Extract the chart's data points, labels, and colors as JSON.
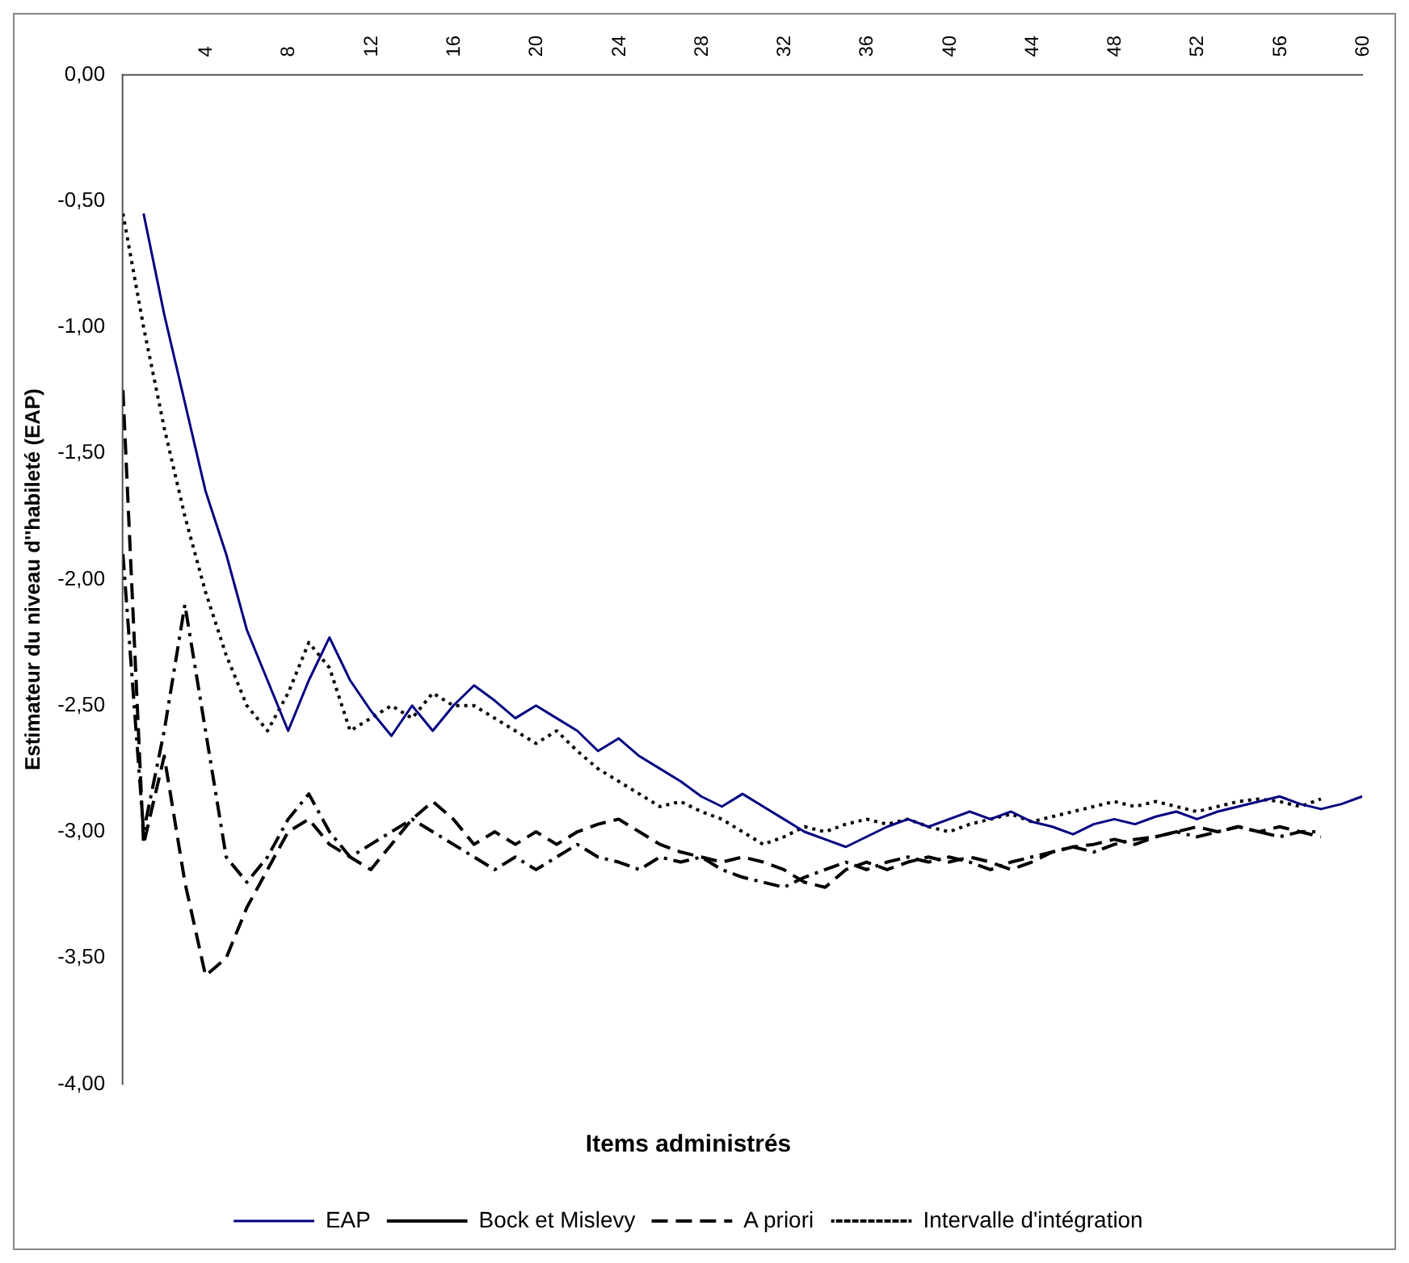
{
  "chart_data": {
    "type": "line",
    "xlabel": "Items administrés",
    "ylabel": "Estimateur du niveau d''habileté (EAP)",
    "xlim": [
      0,
      60
    ],
    "xticks": [
      4,
      8,
      12,
      16,
      20,
      24,
      28,
      32,
      36,
      40,
      44,
      48,
      52,
      56,
      60
    ],
    "ylim": [
      -4,
      0
    ],
    "yticks": [
      {
        "value": 0,
        "label": "0,00"
      },
      {
        "value": -0.5,
        "label": "-0,50"
      },
      {
        "value": -1,
        "label": "-1,00"
      },
      {
        "value": -1.5,
        "label": "-1,50"
      },
      {
        "value": -2,
        "label": "-2,00"
      },
      {
        "value": -2.5,
        "label": "-2,50"
      },
      {
        "value": -3,
        "label": "-3,00"
      },
      {
        "value": -3.5,
        "label": "-3,50"
      },
      {
        "value": -4,
        "label": "-4,00"
      }
    ],
    "grid": false,
    "legend": "bottom",
    "marker": "none",
    "series": [
      {
        "name": "EAP",
        "color": "#000080",
        "line_style": "solid",
        "x": [
          1,
          2,
          3,
          4,
          5,
          6,
          7,
          8,
          9,
          10,
          11,
          12,
          13,
          14,
          15,
          16,
          17,
          18,
          19,
          20,
          21,
          22,
          23,
          24,
          25,
          26,
          27,
          28,
          29,
          30,
          31,
          32,
          33,
          34,
          35,
          36,
          37,
          38,
          39,
          40,
          41,
          42,
          43,
          44,
          45,
          46,
          47,
          48,
          49,
          50,
          51,
          52,
          53,
          54,
          55,
          56,
          57,
          58,
          59,
          60
        ],
        "values": [
          -0.55,
          -0.95,
          -1.3,
          -1.65,
          -1.9,
          -2.2,
          -2.4,
          -2.6,
          -2.4,
          -2.23,
          -2.4,
          -2.52,
          -2.62,
          -2.5,
          -2.6,
          -2.5,
          -2.42,
          -2.48,
          -2.55,
          -2.5,
          -2.55,
          -2.6,
          -2.68,
          -2.63,
          -2.7,
          -2.75,
          -2.8,
          -2.86,
          -2.9,
          -2.85,
          -2.9,
          -2.95,
          -3,
          -3.03,
          -3.06,
          -3.02,
          -2.98,
          -2.95,
          -2.98,
          -2.95,
          -2.92,
          -2.95,
          -2.92,
          -2.96,
          -2.98,
          -3.01,
          -2.97,
          -2.95,
          -2.97,
          -2.94,
          -2.92,
          -2.95,
          -2.92,
          -2.9,
          -2.88,
          -2.86,
          -2.89,
          -2.91,
          -2.89,
          -2.86
        ]
      },
      {
        "name": "Bock et Mislevy",
        "color": "#000000",
        "line_style": "dashdot",
        "x": [
          0,
          1,
          2,
          3,
          4,
          5,
          6,
          7,
          8,
          9,
          10,
          11,
          12,
          13,
          14,
          15,
          16,
          17,
          18,
          19,
          20,
          21,
          22,
          23,
          24,
          25,
          26,
          27,
          28,
          29,
          30,
          31,
          32,
          33,
          34,
          35,
          36,
          37,
          38,
          39,
          40,
          41,
          42,
          43,
          44,
          45,
          46,
          47,
          48,
          49,
          50,
          51,
          52,
          53,
          54,
          55,
          56,
          57,
          58
        ],
        "values": [
          -1.9,
          -3.0,
          -2.6,
          -2.1,
          -2.6,
          -3.1,
          -3.2,
          -3.1,
          -2.95,
          -2.85,
          -3.0,
          -3.1,
          -3.05,
          -3.0,
          -2.95,
          -3.0,
          -3.05,
          -3.1,
          -3.15,
          -3.1,
          -3.15,
          -3.1,
          -3.05,
          -3.1,
          -3.12,
          -3.15,
          -3.1,
          -3.12,
          -3.1,
          -3.15,
          -3.18,
          -3.2,
          -3.22,
          -3.18,
          -3.15,
          -3.12,
          -3.15,
          -3.12,
          -3.1,
          -3.12,
          -3.1,
          -3.12,
          -3.15,
          -3.12,
          -3.1,
          -3.08,
          -3.06,
          -3.08,
          -3.05,
          -3.03,
          -3.02,
          -3.0,
          -3.02,
          -3.0,
          -2.98,
          -3.0,
          -3.02,
          -3.0,
          -3.0
        ]
      },
      {
        "name": "A priori",
        "color": "#000000",
        "line_style": "dashed",
        "x": [
          0,
          1,
          2,
          3,
          4,
          5,
          6,
          7,
          8,
          9,
          10,
          11,
          12,
          13,
          14,
          15,
          16,
          17,
          18,
          19,
          20,
          21,
          22,
          23,
          24,
          25,
          26,
          27,
          28,
          29,
          30,
          31,
          32,
          33,
          34,
          35,
          36,
          37,
          38,
          39,
          40,
          41,
          42,
          43,
          44,
          45,
          46,
          47,
          48,
          49,
          50,
          51,
          52,
          53,
          54,
          55,
          56,
          57,
          58
        ],
        "values": [
          -1.25,
          -3.05,
          -2.7,
          -3.2,
          -3.57,
          -3.5,
          -3.3,
          -3.15,
          -3.0,
          -2.95,
          -3.05,
          -3.1,
          -3.15,
          -3.05,
          -2.95,
          -2.88,
          -2.95,
          -3.05,
          -3.0,
          -3.05,
          -3.0,
          -3.05,
          -3.0,
          -2.97,
          -2.95,
          -3.0,
          -3.05,
          -3.08,
          -3.1,
          -3.12,
          -3.1,
          -3.12,
          -3.15,
          -3.2,
          -3.22,
          -3.15,
          -3.12,
          -3.15,
          -3.12,
          -3.1,
          -3.12,
          -3.1,
          -3.12,
          -3.15,
          -3.12,
          -3.08,
          -3.06,
          -3.05,
          -3.03,
          -3.05,
          -3.02,
          -3.0,
          -2.98,
          -3.0,
          -2.98,
          -3.0,
          -2.98,
          -3.0,
          -3.02
        ]
      },
      {
        "name": "Intervalle d'intégration",
        "color": "#000000",
        "line_style": "dotted",
        "x": [
          0,
          1,
          2,
          3,
          4,
          5,
          6,
          7,
          8,
          9,
          10,
          11,
          12,
          13,
          14,
          15,
          16,
          17,
          18,
          19,
          20,
          21,
          22,
          23,
          24,
          25,
          26,
          27,
          28,
          29,
          30,
          31,
          32,
          33,
          34,
          35,
          36,
          37,
          38,
          39,
          40,
          41,
          42,
          43,
          44,
          45,
          46,
          47,
          48,
          49,
          50,
          51,
          52,
          53,
          54,
          55,
          56,
          57,
          58
        ],
        "values": [
          -0.55,
          -1.0,
          -1.4,
          -1.75,
          -2.05,
          -2.3,
          -2.5,
          -2.6,
          -2.45,
          -2.25,
          -2.35,
          -2.6,
          -2.55,
          -2.5,
          -2.55,
          -2.45,
          -2.5,
          -2.5,
          -2.55,
          -2.6,
          -2.65,
          -2.6,
          -2.68,
          -2.75,
          -2.8,
          -2.85,
          -2.9,
          -2.88,
          -2.92,
          -2.95,
          -3.0,
          -3.05,
          -3.02,
          -2.98,
          -3.0,
          -2.97,
          -2.95,
          -2.97,
          -2.95,
          -2.98,
          -3.0,
          -2.97,
          -2.95,
          -2.93,
          -2.96,
          -2.94,
          -2.92,
          -2.9,
          -2.88,
          -2.9,
          -2.88,
          -2.9,
          -2.92,
          -2.9,
          -2.88,
          -2.87,
          -2.88,
          -2.9,
          -2.87
        ]
      }
    ]
  }
}
